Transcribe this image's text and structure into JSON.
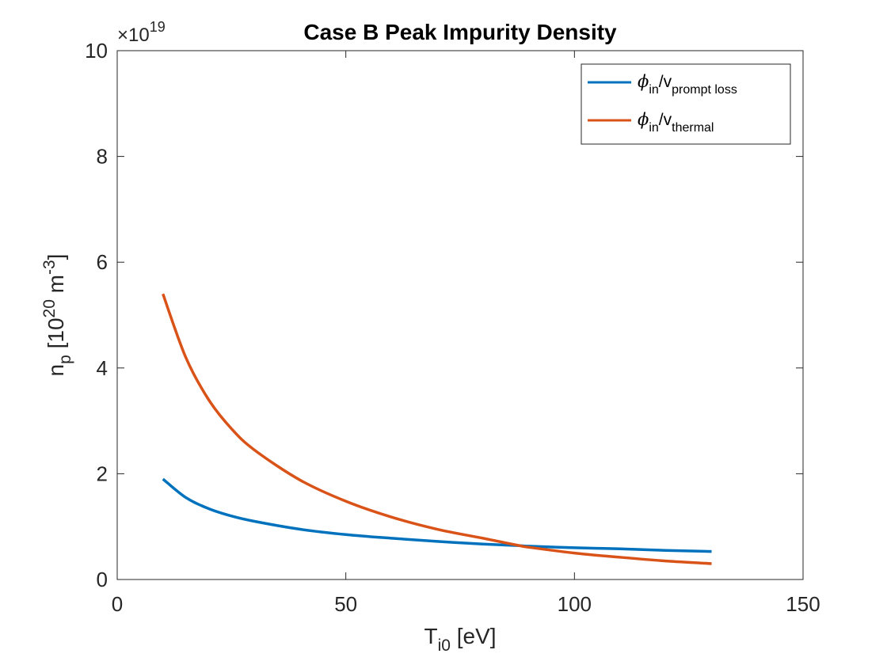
{
  "chart_data": {
    "type": "line",
    "title": "Case B Peak Impurity Density",
    "xlabel": {
      "base": "T",
      "sub": "i0",
      "rest": " [eV]"
    },
    "ylabel": {
      "base": "n",
      "sub": "p",
      "rest": " [10",
      "sup1": "20",
      "mid": " m",
      "sup2": "-3",
      "end": "]"
    },
    "y_multiplier": {
      "prefix": "×10",
      "exp": "19"
    },
    "xlim": [
      0,
      150
    ],
    "ylim": [
      0,
      100000000000000000000
    ],
    "x_ticks": [
      0,
      50,
      100,
      150
    ],
    "x_tick_labels": [
      "0",
      "50",
      "100",
      "150"
    ],
    "y_ticks": [
      0,
      20000000000000000000,
      40000000000000000000,
      60000000000000000000,
      80000000000000000000,
      100000000000000000000
    ],
    "y_tick_labels": [
      "0",
      "2",
      "4",
      "6",
      "8",
      "10"
    ],
    "grid": false,
    "legend_position": "top-right",
    "x": [
      10,
      15,
      20,
      25,
      30,
      40,
      50,
      60,
      70,
      80,
      88,
      90,
      100,
      110,
      120,
      130
    ],
    "series": [
      {
        "name": {
          "phi": "ϕ",
          "sub1": "in",
          "slash": "/v",
          "sub2": "prompt loss"
        },
        "color": "#0072BD",
        "values": [
          19000000000000000000,
          15500000000000000000,
          13400000000000000000,
          12000000000000000000,
          11000000000000000000,
          9500000000000000000,
          8500000000000000000,
          7800000000000000000,
          7200000000000000000,
          6700000000000000000,
          6400000000000000000,
          6300000000000000000,
          6000000000000000000,
          5800000000000000000,
          5500000000000000000,
          5300000000000000000
        ]
      },
      {
        "name": {
          "phi": "ϕ",
          "sub1": "in",
          "slash": "/v",
          "sub2": "thermal"
        },
        "color": "#D95319",
        "values": [
          54000000000000000000,
          42000000000000000000,
          34000000000000000000,
          28500000000000000000,
          24500000000000000000,
          18800000000000000000,
          14800000000000000000,
          11800000000000000000,
          9500000000000000000,
          7800000000000000000,
          6400000000000000000,
          6100000000000000000,
          5000000000000000000,
          4200000000000000000,
          3500000000000000000,
          3000000000000000000
        ]
      }
    ]
  }
}
